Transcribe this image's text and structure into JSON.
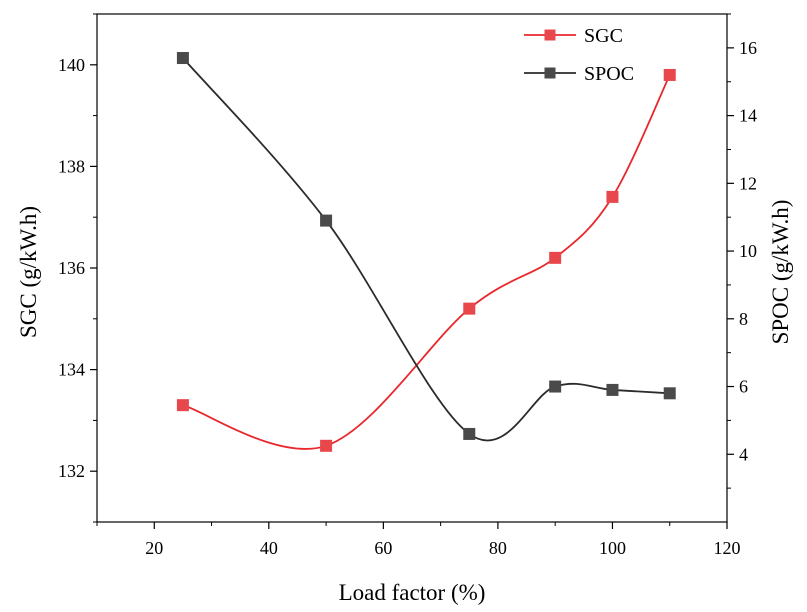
{
  "chart_data": {
    "type": "line",
    "title": "",
    "xlabel": "Load factor (%)",
    "ylabel_left": "SGC (g/kW.h)",
    "ylabel_right": "SPOC (g/kW.h)",
    "xlim": [
      10,
      120
    ],
    "ylim_left": [
      131,
      141
    ],
    "ylim_right": [
      2,
      17
    ],
    "x_ticks": [
      20,
      40,
      60,
      80,
      100,
      120
    ],
    "y_left_ticks": [
      132,
      134,
      136,
      138,
      140
    ],
    "y_right_ticks": [
      4,
      6,
      8,
      10,
      12,
      14,
      16
    ],
    "grid": false,
    "legend_position": "top-right",
    "x": [
      25,
      50,
      75,
      90,
      100,
      110
    ],
    "series": [
      {
        "name": "SGC",
        "axis": "left",
        "color": "#e8282d",
        "marker_color": "#e8474c",
        "values": [
          133.3,
          132.5,
          135.2,
          136.2,
          137.4,
          139.8
        ]
      },
      {
        "name": "SPOC",
        "axis": "right",
        "color": "#2b2b2b",
        "marker_color": "#4a4a4a",
        "values": [
          15.7,
          10.9,
          4.6,
          6.0,
          5.9,
          5.8
        ]
      }
    ]
  }
}
